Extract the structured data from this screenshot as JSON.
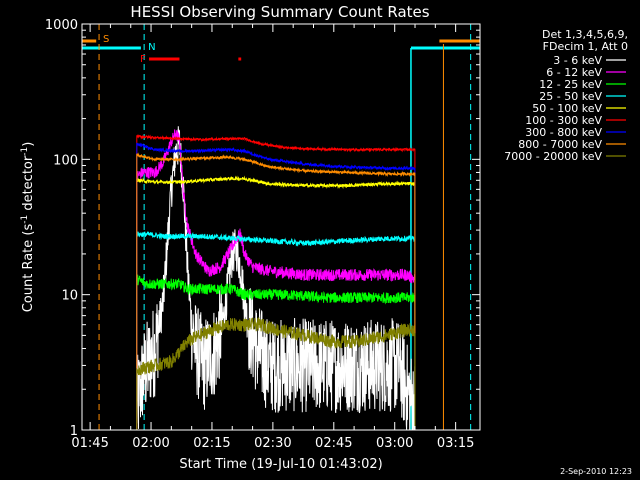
{
  "chart_data": {
    "type": "line",
    "title": "HESSI Observing Summary Count Rates",
    "xlabel": "Start Time (19-Jul-10 01:43:02)",
    "ylabel_main": "Count Rate (s",
    "ylabel_sup1": "-1",
    "ylabel_mid": " detector",
    "ylabel_sup2": "-1",
    "ylabel_end": ")",
    "y_scale": "log",
    "ylim": [
      1,
      1000
    ],
    "xlim_minutes": [
      0,
      98
    ],
    "x_ticks": [
      {
        "label": "01:45",
        "minute": 2
      },
      {
        "label": "02:00",
        "minute": 17
      },
      {
        "label": "02:15",
        "minute": 32
      },
      {
        "label": "02:30",
        "minute": 47
      },
      {
        "label": "02:45",
        "minute": 62
      },
      {
        "label": "03:00",
        "minute": 77
      },
      {
        "label": "03:15",
        "minute": 92
      }
    ],
    "y_ticks": [
      {
        "label": "1",
        "value": 1
      },
      {
        "label": "10",
        "value": 10
      },
      {
        "label": "100",
        "value": 100
      },
      {
        "label": "1000",
        "value": 1000
      }
    ],
    "legend_header": [
      "Det 1,3,4,5,6,9,",
      "FDecim 1, Att 0"
    ],
    "legend_placement": "right",
    "series": [
      {
        "name": "3 - 6 keV",
        "color": "#ffffff",
        "start": 13.5,
        "end": 82,
        "values": [
          [
            13.5,
            1.5
          ],
          [
            15,
            2.5
          ],
          [
            18,
            4
          ],
          [
            20,
            9
          ],
          [
            22,
            60
          ],
          [
            23,
            110
          ],
          [
            24,
            130
          ],
          [
            25,
            60
          ],
          [
            26,
            15
          ],
          [
            27,
            6
          ],
          [
            28,
            4
          ],
          [
            30,
            3
          ],
          [
            33,
            4
          ],
          [
            35,
            7
          ],
          [
            37,
            20
          ],
          [
            38,
            22
          ],
          [
            39,
            16
          ],
          [
            40,
            9
          ],
          [
            41,
            6
          ],
          [
            43,
            4
          ],
          [
            46,
            3
          ],
          [
            55,
            3
          ],
          [
            65,
            3
          ],
          [
            75,
            3
          ],
          [
            78,
            3
          ],
          [
            80,
            2
          ],
          [
            82,
            1.5
          ]
        ]
      },
      {
        "name": "6 - 12 keV",
        "color": "#ff00ff",
        "start": 13.5,
        "end": 82,
        "values": [
          [
            13.5,
            75
          ],
          [
            15,
            80
          ],
          [
            18,
            80
          ],
          [
            20,
            95
          ],
          [
            22,
            135
          ],
          [
            23,
            155
          ],
          [
            24,
            140
          ],
          [
            25,
            55
          ],
          [
            26,
            32
          ],
          [
            28,
            20
          ],
          [
            31,
            15
          ],
          [
            34,
            16
          ],
          [
            36,
            20
          ],
          [
            38,
            26
          ],
          [
            39,
            28
          ],
          [
            40,
            20
          ],
          [
            42,
            16
          ],
          [
            46,
            15
          ],
          [
            55,
            14
          ],
          [
            65,
            14
          ],
          [
            75,
            14
          ],
          [
            80,
            14
          ],
          [
            82,
            13
          ]
        ]
      },
      {
        "name": "12 - 25 keV",
        "color": "#00ff00",
        "start": 13.5,
        "end": 82,
        "values": [
          [
            13.5,
            13
          ],
          [
            16,
            12
          ],
          [
            20,
            12
          ],
          [
            24,
            12
          ],
          [
            26,
            11
          ],
          [
            30,
            11
          ],
          [
            37,
            11
          ],
          [
            40,
            10
          ],
          [
            50,
            10
          ],
          [
            60,
            9.5
          ],
          [
            70,
            9.5
          ],
          [
            82,
            9.5
          ]
        ]
      },
      {
        "name": "25 - 50 keV",
        "color": "#00ffff",
        "start": 13.5,
        "end": 82,
        "values": [
          [
            13.5,
            28
          ],
          [
            16,
            28
          ],
          [
            20,
            27
          ],
          [
            26,
            27
          ],
          [
            30,
            27
          ],
          [
            38,
            26
          ],
          [
            46,
            25
          ],
          [
            55,
            24
          ],
          [
            65,
            25
          ],
          [
            75,
            26
          ],
          [
            82,
            26
          ]
        ]
      },
      {
        "name": "50 - 100 keV",
        "color": "#ffff00",
        "start": 13.5,
        "end": 82,
        "values": [
          [
            13.5,
            70
          ],
          [
            18,
            68
          ],
          [
            24,
            68
          ],
          [
            30,
            70
          ],
          [
            36,
            72
          ],
          [
            40,
            72
          ],
          [
            46,
            66
          ],
          [
            55,
            64
          ],
          [
            65,
            64
          ],
          [
            75,
            66
          ],
          [
            82,
            66
          ]
        ]
      },
      {
        "name": "100 - 300 keV",
        "color": "#ff0000",
        "start": 13.5,
        "end": 82,
        "values": [
          [
            13.5,
            148
          ],
          [
            18,
            145
          ],
          [
            24,
            142
          ],
          [
            30,
            140
          ],
          [
            36,
            142
          ],
          [
            40,
            142
          ],
          [
            44,
            130
          ],
          [
            50,
            122
          ],
          [
            55,
            120
          ],
          [
            65,
            118
          ],
          [
            75,
            118
          ],
          [
            82,
            118
          ]
        ]
      },
      {
        "name": "300 - 800 keV",
        "color": "#0000ff",
        "start": 13.5,
        "end": 82,
        "values": [
          [
            13.5,
            130
          ],
          [
            18,
            118
          ],
          [
            24,
            115
          ],
          [
            30,
            116
          ],
          [
            36,
            118
          ],
          [
            40,
            115
          ],
          [
            46,
            100
          ],
          [
            55,
            92
          ],
          [
            65,
            88
          ],
          [
            75,
            86
          ],
          [
            82,
            86
          ]
        ]
      },
      {
        "name": "800 - 7000 keV",
        "color": "#ff8c00",
        "start": 13.5,
        "end": 82,
        "values": [
          [
            13.5,
            108
          ],
          [
            18,
            100
          ],
          [
            24,
            100
          ],
          [
            30,
            102
          ],
          [
            36,
            104
          ],
          [
            40,
            100
          ],
          [
            46,
            88
          ],
          [
            55,
            82
          ],
          [
            65,
            80
          ],
          [
            75,
            78
          ],
          [
            82,
            78
          ]
        ]
      },
      {
        "name": "7000 - 20000 keV",
        "color": "#808000",
        "start": 13.5,
        "end": 82,
        "values": [
          [
            13.5,
            2.8
          ],
          [
            18,
            3
          ],
          [
            22,
            3.2
          ],
          [
            26,
            4.5
          ],
          [
            29,
            5
          ],
          [
            32,
            5.5
          ],
          [
            36,
            6
          ],
          [
            40,
            6
          ],
          [
            44,
            6
          ],
          [
            48,
            5.5
          ],
          [
            55,
            5
          ],
          [
            62,
            4.5
          ],
          [
            68,
            4.5
          ],
          [
            75,
            5
          ],
          [
            80,
            5.5
          ],
          [
            82,
            5.5
          ]
        ]
      }
    ],
    "flags": {
      "S_label": "S",
      "N_label": "N",
      "F_label": "F",
      "saa_color": "#ff8c00",
      "night_color": "#00ffff",
      "flare_color": "#ff0000",
      "saa_bars": [
        [
          0,
          3.5
        ],
        [
          88,
          98
        ]
      ],
      "night_bars": [
        [
          0,
          14.5
        ],
        [
          81,
          98
        ]
      ],
      "flare_bars": [
        [
          16.5,
          24
        ],
        [
          38.5,
          39.2
        ]
      ],
      "saa_markers": [
        4.2
      ],
      "night_markers": [
        15.3,
        95.7
      ],
      "saa_solid_lines": [
        89
      ],
      "night_solid_lines": [
        81
      ]
    },
    "timestamp": "2-Sep-2010 12:23"
  }
}
